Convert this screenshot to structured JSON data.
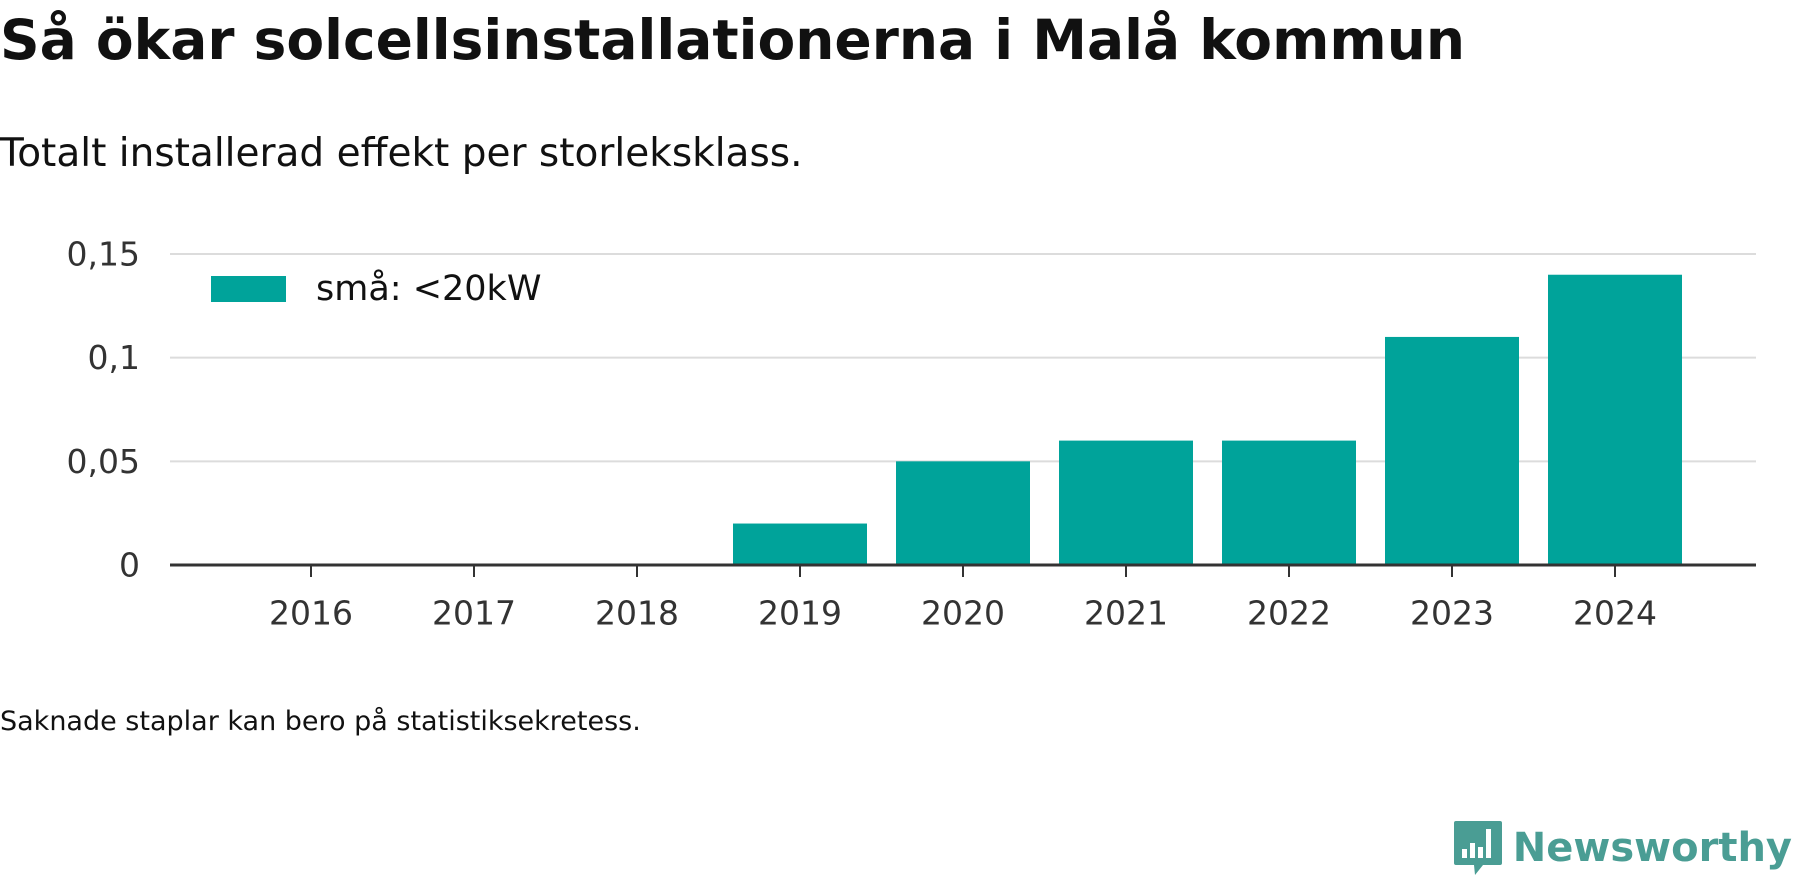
{
  "header": {
    "title": "Så ökar solcellsinstallationerna i Malå kommun",
    "subtitle": "Totalt installerad effekt per storleksklass."
  },
  "chart_data": {
    "type": "bar",
    "categories": [
      "2016",
      "2017",
      "2018",
      "2019",
      "2020",
      "2021",
      "2022",
      "2023",
      "2024"
    ],
    "series": [
      {
        "name": "små: <20kW",
        "color": "#00a39a",
        "values": [
          0,
          0,
          0,
          0.02,
          0.05,
          0.06,
          0.06,
          0.11,
          0.14
        ]
      }
    ],
    "ylim": [
      0,
      0.15
    ],
    "yticks": [
      0,
      0.05,
      0.1,
      0.15
    ],
    "ytick_labels": [
      "0",
      "0,05",
      "0,1",
      "0,15"
    ],
    "grid": true,
    "legend_position": "top-left",
    "xlabel": "",
    "ylabel": ""
  },
  "footer": {
    "note": "Saknade staplar kan bero på statistiksekretess.",
    "brand": "Newsworthy",
    "brand_icon": "bar-chart-speech-bubble-icon",
    "brand_color": "#4a9d94"
  }
}
